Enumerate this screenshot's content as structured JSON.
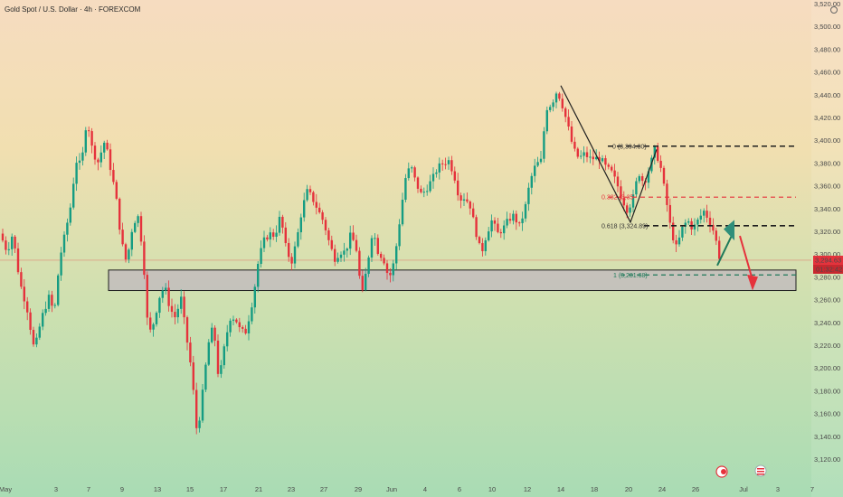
{
  "header": {
    "title": "Gold Spot / U.S. Dollar · 4h · FOREXCOM"
  },
  "colors": {
    "up": "#159c82",
    "down": "#e5323c",
    "level": "#1f1f1f",
    "fib_red": "#e5323c",
    "fib_green": "#1f7a5a",
    "zone": "#b9a9c4"
  },
  "price_badge": {
    "price": "3,294.63",
    "countdown": "01:32:42",
    "color": "#e5323c"
  },
  "fib_labels": {
    "l0": "0 (3,394.80)",
    "l382": "0.382 (3,35",
    "l618": "0.618 (3,324.89)",
    "l1": "1 (3,281.68)"
  },
  "icons": {
    "event1": "calendar-flag-icon",
    "event2": "us-flag-icon",
    "settings": "gear-icon"
  },
  "chart_data": {
    "type": "candlestick",
    "symbol": "XAUUSD",
    "timeframe": "4h",
    "y_ticks": [
      "3,520.00",
      "3,500.00",
      "3,480.00",
      "3,460.00",
      "3,440.00",
      "3,420.00",
      "3,400.00",
      "3,380.00",
      "3,360.00",
      "3,340.00",
      "3,320.00",
      "3,300.00",
      "3,280.00",
      "3,260.00",
      "3,240.00",
      "3,220.00",
      "3,200.00",
      "3,180.00",
      "3,160.00",
      "3,140.00",
      "3,120.00"
    ],
    "y_tick_values": [
      3520,
      3500,
      3480,
      3460,
      3440,
      3420,
      3400,
      3380,
      3360,
      3340,
      3320,
      3300,
      3280,
      3260,
      3240,
      3220,
      3200,
      3180,
      3160,
      3140,
      3120
    ],
    "x_ticks": [
      "May",
      "3",
      "7",
      "9",
      "13",
      "15",
      "17",
      "21",
      "23",
      "27",
      "29",
      "Jun",
      "4",
      "6",
      "10",
      "12",
      "14",
      "18",
      "20",
      "24",
      "26",
      "Jul",
      "3",
      "7"
    ],
    "levels": [
      {
        "name": "fib-0",
        "price": 3394.8,
        "style": "dashed-black"
      },
      {
        "name": "fib-0.382",
        "price": 3350,
        "style": "dashed-red"
      },
      {
        "name": "fib-0.618",
        "price": 3324.89,
        "style": "dashed-black"
      },
      {
        "name": "fib-1",
        "price": 3281.68,
        "style": "dashed-green"
      }
    ],
    "support_zone": {
      "top": 3286,
      "bottom": 3268
    },
    "last_price": 3294.63,
    "ylim": [
      3115,
      3525
    ]
  }
}
